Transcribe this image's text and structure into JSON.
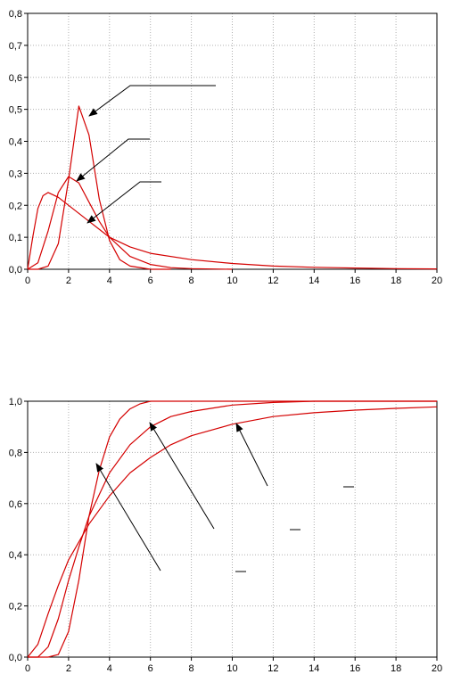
{
  "chart_data": [
    {
      "type": "line",
      "title": "",
      "xlabel": "",
      "ylabel": "",
      "xlim": [
        0,
        20
      ],
      "ylim": [
        0,
        0.8
      ],
      "grid": true,
      "line_color": "#d40000",
      "x_ticks": [
        "0",
        "2",
        "4",
        "6",
        "8",
        "10",
        "12",
        "14",
        "16",
        "18",
        "20"
      ],
      "y_ticks": [
        "0,0",
        "0,1",
        "0,2",
        "0,3",
        "0,4",
        "0,5",
        "0,6",
        "0,7",
        "0,8"
      ],
      "series": [
        {
          "x": [
            0,
            0.5,
            1,
            1.5,
            2,
            2.5,
            3,
            3.5,
            4,
            4.5,
            5,
            6,
            7
          ],
          "y": [
            0,
            0,
            0.01,
            0.08,
            0.28,
            0.51,
            0.42,
            0.22,
            0.09,
            0.03,
            0.01,
            0,
            0
          ]
        },
        {
          "x": [
            0,
            0.5,
            1,
            1.5,
            2,
            2.5,
            3,
            3.5,
            4,
            5,
            6,
            7,
            8,
            10
          ],
          "y": [
            0,
            0.02,
            0.12,
            0.24,
            0.29,
            0.27,
            0.21,
            0.15,
            0.1,
            0.04,
            0.015,
            0.005,
            0.002,
            0
          ]
        },
        {
          "x": [
            0,
            0.25,
            0.5,
            0.75,
            1,
            1.5,
            2,
            3,
            4,
            5,
            6,
            8,
            10,
            12,
            14,
            16,
            18,
            20
          ],
          "y": [
            0,
            0.1,
            0.19,
            0.23,
            0.24,
            0.225,
            0.2,
            0.15,
            0.1,
            0.07,
            0.05,
            0.03,
            0.018,
            0.01,
            0.006,
            0.004,
            0.002,
            0.001
          ]
        }
      ]
    },
    {
      "type": "line",
      "title": "",
      "xlabel": "",
      "ylabel": "",
      "xlim": [
        0,
        20
      ],
      "ylim": [
        0,
        1.0
      ],
      "grid": true,
      "line_color": "#d40000",
      "x_ticks": [
        "0",
        "2",
        "4",
        "6",
        "8",
        "10",
        "12",
        "14",
        "16",
        "18",
        "20"
      ],
      "y_ticks": [
        "0,0",
        "0,2",
        "0,4",
        "0,6",
        "0,8",
        "1,0"
      ],
      "series": [
        {
          "x": [
            0,
            1,
            1.5,
            2,
            2.5,
            3,
            3.5,
            4,
            4.5,
            5,
            5.5,
            6,
            8,
            10,
            12,
            14,
            16,
            18,
            20
          ],
          "y": [
            0,
            0,
            0.01,
            0.1,
            0.3,
            0.55,
            0.73,
            0.86,
            0.93,
            0.97,
            0.99,
            1.0,
            1.0,
            1.0,
            1.0,
            1.0,
            1.0,
            1.0,
            1.0
          ]
        },
        {
          "x": [
            0,
            0.5,
            1,
            1.5,
            2,
            2.5,
            3,
            4,
            5,
            6,
            7,
            8,
            10,
            12,
            14,
            16,
            18,
            20
          ],
          "y": [
            0,
            0,
            0.04,
            0.15,
            0.3,
            0.43,
            0.55,
            0.72,
            0.83,
            0.9,
            0.94,
            0.96,
            0.985,
            0.995,
            1.0,
            1.0,
            1.0,
            1.0
          ]
        },
        {
          "x": [
            0,
            0.5,
            1,
            1.5,
            2,
            2.5,
            3,
            4,
            5,
            6,
            7,
            8,
            10,
            12,
            14,
            16,
            18,
            20
          ],
          "y": [
            0,
            0.05,
            0.17,
            0.28,
            0.38,
            0.45,
            0.52,
            0.63,
            0.72,
            0.78,
            0.83,
            0.865,
            0.91,
            0.94,
            0.955,
            0.965,
            0.972,
            0.978
          ]
        }
      ]
    }
  ]
}
